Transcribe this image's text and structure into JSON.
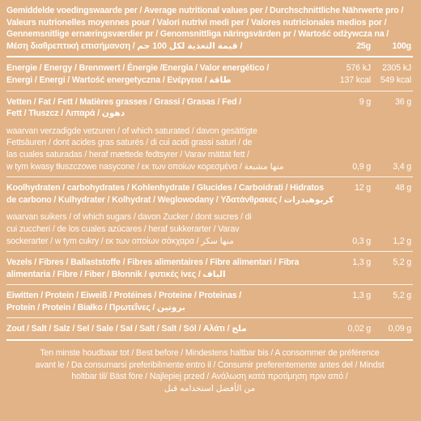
{
  "header": {
    "lines": [
      "Gemiddelde voedingswaarde per / Average nutritional values per / Durchschnittliche Nährwerte pro /",
      "Valeurs nutrionelles moyennes pour / Valori nutrivi medi per / Valores nutricionales medios por /",
      "Gennemsnitlige ernæringsværdier pr / Genomsnittliga näringsvärden pr / Wartość odżywcza na /",
      "Μέση διαθρεπτική επισήμανση / قيمة التغذية لكل 100 جم /"
    ],
    "per_25g": "25g",
    "per_100g": "100g"
  },
  "rows": [
    {
      "lines": [
        "Energie / Energy / Brennwert / Énergie /Energia / Valor energético /",
        "Energi / Energi / Wartość energetyczna / Ενέργεια / طاقة"
      ],
      "values_25g": [
        "576 kJ",
        "137 kcal"
      ],
      "values_100g": [
        "2305 kJ",
        "549 kcal"
      ]
    },
    {
      "lines": [
        "Vetten / Fat / Fett / Matières grasses / Grassi / Grasas / Fed /",
        "Fett / Tłuszcz / Λιπαρά / دهون"
      ],
      "values_25g": [
        "9 g"
      ],
      "values_100g": [
        "36 g"
      ],
      "sub": {
        "lines": [
          "waarvan verzadigde vetzuren / of which saturated / davon gesättigte",
          "Fettsäuren / dont acides gras saturés / di cui acidi grassi saturi / de",
          "las cuales saturadas / heraf mættede fedtsyrer / Varav mättat fett /",
          "w tym kwasy tłuszczowe nasycone / εκ των οποίων κορεσμένα / منها مشبعة"
        ],
        "values_25g": [
          "0,9 g"
        ],
        "values_100g": [
          "3,4 g"
        ]
      }
    },
    {
      "lines": [
        "Koolhydraten / carbohydrates / Kohlenhydrate / Glucides / Carboidrati / Hidratos",
        "de carbono / Kulhydrater / Kolhydrat / Weglowodany / Υδατάνθρακες / كربوهيدرات"
      ],
      "values_25g": [
        "12 g"
      ],
      "values_100g": [
        "48 g"
      ],
      "sub": {
        "lines": [
          "waarvan suikers / of which sugars / davon Zucker / dont sucres / di",
          "cui zuccheri / de los cuales azúcares / heraf sukkerarter / Varav",
          "sockerarter / w tym cukry / εκ των οποίων σάκχαρα / منها سكر"
        ],
        "values_25g": [
          "0,3 g"
        ],
        "values_100g": [
          "1,2 g"
        ]
      }
    },
    {
      "lines": [
        "Vezels / Fibres / Ballaststoffe / Fibres alimentaires / Fibre alimentari / Fibra",
        "alimentaria / Fibre / Fiber / Błonnik / φυτικές ίνες / الياف"
      ],
      "values_25g": [
        "1,3 g"
      ],
      "values_100g": [
        "5,2 g"
      ]
    },
    {
      "lines": [
        "Eiwitten / Protein / Eiweiß / Protéines / Proteine / Proteinas /",
        "Protein / Protein / Białko / Πρωτεΐνες / بروتين"
      ],
      "values_25g": [
        "1,3 g"
      ],
      "values_100g": [
        "5,2 g"
      ]
    },
    {
      "lines": [
        "Zout / Salt / Salz / Sel / Sale / Sal / Salt / Salt / Sól / Αλάτι / ملح"
      ],
      "values_25g": [
        "0,02 g"
      ],
      "values_100g": [
        "0,09 g"
      ]
    }
  ],
  "footer": {
    "lines": [
      "Ten minste houdbaar tot / Best before / Mindestens haltbar bis / A consommer de préférence",
      "avant le / Da consumarsi preferibilmente entro il / Consumir preferentemente antes del / Mindst",
      "holtbar til/ Bäst före / Najlepiej przed / Ανάλωση κατά προτίμηση πριν από /",
      "من الأفضل استخدامه قبل"
    ]
  }
}
